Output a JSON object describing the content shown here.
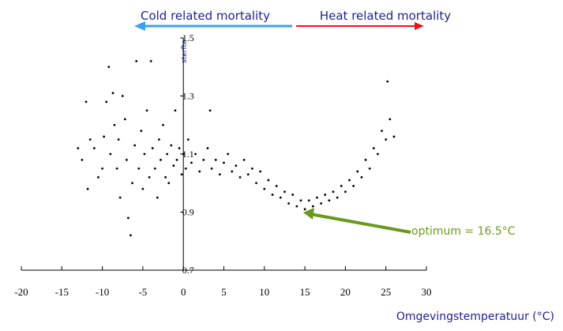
{
  "chart_data": {
    "type": "scatter",
    "header_left": "Cold related mortality",
    "header_right": "Heat related mortality",
    "y_label": "sterfte",
    "x_label": "Omgevingstemperatuur (°C)",
    "annotation": "optimum = 16.5°C",
    "color": "#000000",
    "x": [
      -13,
      -12.5,
      -12,
      -11.8,
      -11.5,
      -11,
      -10.5,
      -10,
      -9.8,
      -9.5,
      -9.2,
      -9,
      -8.7,
      -8.5,
      -8.2,
      -8,
      -7.8,
      -7.5,
      -7.2,
      -7,
      -6.8,
      -6.5,
      -6.3,
      -6,
      -5.8,
      -5.5,
      -5.2,
      -5,
      -4.8,
      -4.5,
      -4.2,
      -4,
      -3.8,
      -3.5,
      -3.2,
      -3,
      -2.8,
      -2.5,
      -2.2,
      -2,
      -1.8,
      -1.5,
      -1.2,
      -1,
      -0.8,
      -0.5,
      -0.2,
      0,
      0.3,
      0.6,
      1,
      1.5,
      2,
      2.5,
      3,
      3.3,
      3.5,
      4,
      4.5,
      5,
      5.5,
      6,
      6.5,
      7,
      7.5,
      8,
      8.5,
      9,
      9.5,
      10,
      10.5,
      11,
      11.5,
      12,
      12.5,
      13,
      13.5,
      14,
      14.5,
      15,
      15.5,
      16,
      16.5,
      17,
      17.5,
      18,
      18.5,
      19,
      19.5,
      20,
      20.5,
      21,
      21.5,
      22,
      22.5,
      23,
      23.5,
      24,
      24.5,
      25,
      25.2,
      25.5,
      26
    ],
    "values": [
      1.12,
      1.08,
      1.28,
      0.98,
      1.15,
      1.12,
      1.02,
      1.05,
      1.16,
      1.28,
      1.4,
      1.1,
      1.31,
      1.2,
      1.05,
      1.15,
      0.95,
      1.3,
      1.22,
      1.08,
      0.88,
      0.82,
      1.0,
      1.13,
      1.42,
      1.05,
      1.18,
      0.98,
      1.1,
      1.25,
      1.02,
      1.42,
      1.12,
      1.05,
      0.95,
      1.15,
      1.08,
      1.2,
      1.02,
      1.1,
      1.0,
      1.13,
      1.06,
      1.25,
      1.08,
      1.12,
      1.03,
      1.1,
      1.05,
      1.15,
      1.07,
      1.1,
      1.04,
      1.08,
      1.12,
      1.25,
      1.05,
      1.08,
      1.03,
      1.07,
      1.1,
      1.04,
      1.06,
      1.02,
      1.08,
      1.03,
      1.05,
      1.0,
      1.04,
      0.98,
      1.01,
      0.96,
      0.99,
      0.95,
      0.97,
      0.93,
      0.96,
      0.92,
      0.94,
      0.91,
      0.94,
      0.92,
      0.95,
      0.93,
      0.96,
      0.94,
      0.97,
      0.95,
      0.99,
      0.97,
      1.01,
      0.99,
      1.04,
      1.02,
      1.08,
      1.05,
      1.12,
      1.1,
      1.18,
      1.15,
      1.35,
      1.22,
      1.16
    ],
    "xlim": [
      -20,
      30
    ],
    "xticks": [
      -20,
      -15,
      -10,
      -5,
      0,
      5,
      10,
      15,
      20,
      25,
      30
    ],
    "ylim": [
      0.7,
      1.5
    ],
    "yticks": [
      0.7,
      0.9,
      1.1,
      1.3,
      1.5
    ]
  }
}
